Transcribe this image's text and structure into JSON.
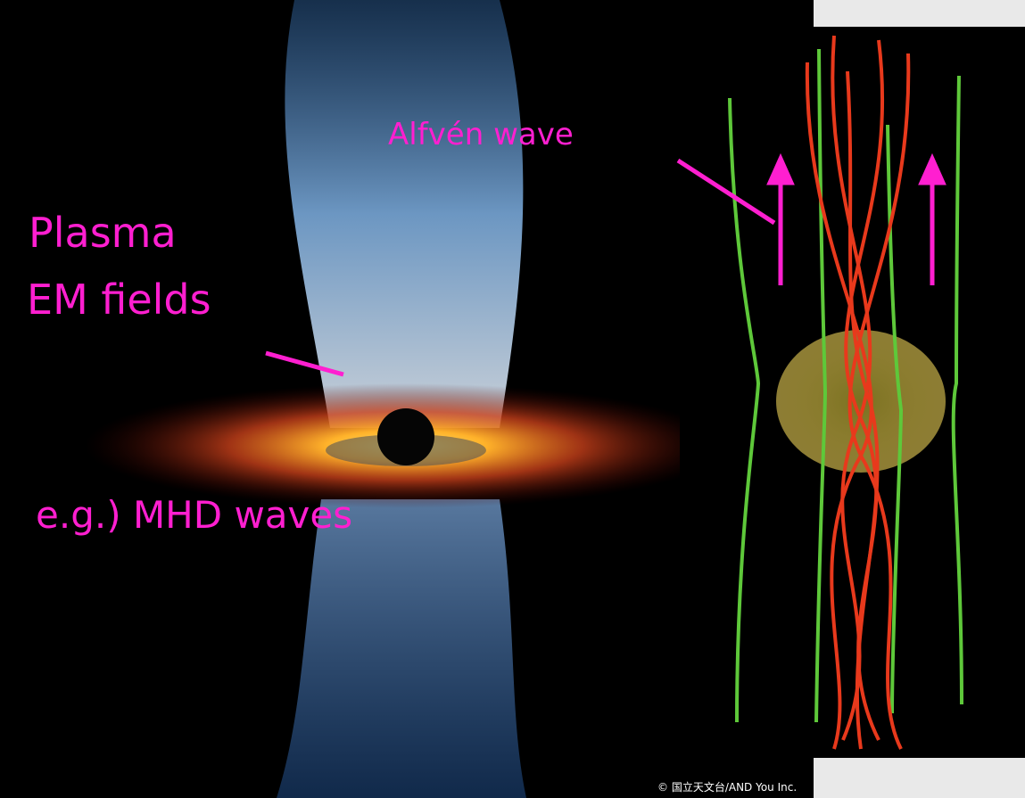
{
  "labels": {
    "alfven": "Alfvén wave",
    "plasma": "Plasma",
    "em_fields": "EM fields",
    "example": "e.g.) MHD waves",
    "credit": "© 国立天文台/AND You Inc."
  }
}
